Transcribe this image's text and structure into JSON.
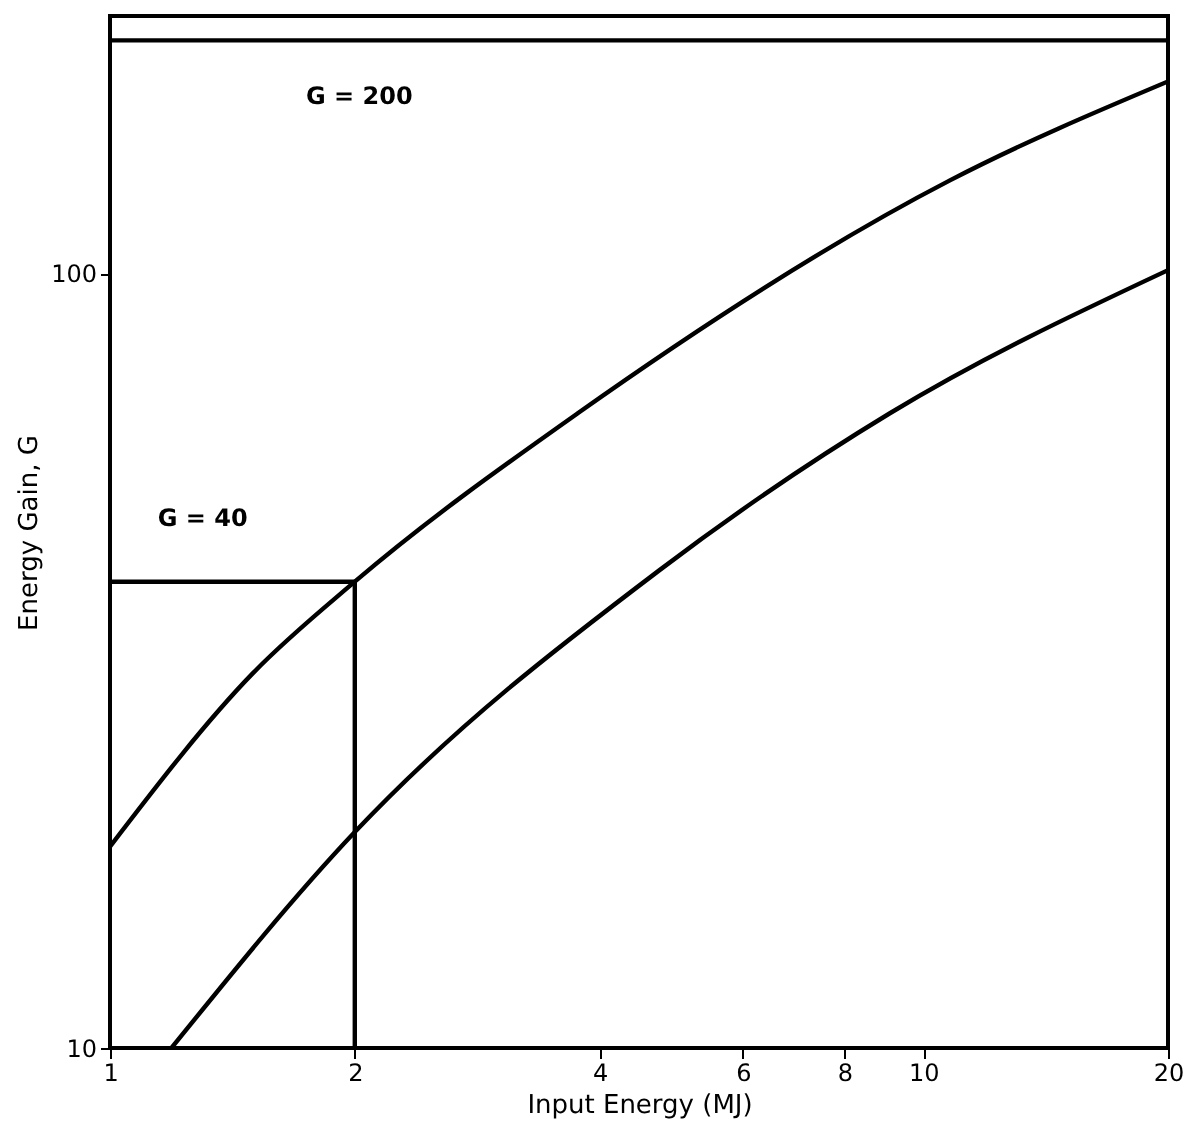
{
  "chart_data": {
    "type": "line",
    "xlabel": "Input Energy (MJ)",
    "ylabel": "Energy Gain, G",
    "log": "xy",
    "xlim": [
      1,
      20
    ],
    "xticks": [
      1,
      2,
      4,
      6,
      8,
      10,
      20
    ],
    "ylim": [
      10,
      215
    ],
    "yticks": [
      10,
      100
    ],
    "grid": false,
    "marker": "none",
    "line_style": "solid",
    "series": [
      {
        "color": "#000000",
        "x": [
          1,
          1.5,
          2,
          3.76,
          10.8,
          20
        ],
        "values": [
          18.2,
          30.5,
          40,
          66,
          132,
          177
        ]
      },
      {
        "color": "#000000",
        "x": [
          1.19,
          2,
          4.74,
          9.1,
          20
        ],
        "values": [
          10,
          19,
          41.4,
          66,
          101
        ]
      },
      {
        "color": "#000000",
        "x": [
          1,
          2
        ],
        "values": [
          40,
          40
        ]
      },
      {
        "color": "#000000",
        "x": [
          2,
          2
        ],
        "values": [
          10,
          40
        ]
      }
    ],
    "ref_lines": [
      {
        "axis": "y",
        "value": 200,
        "label": "G = 200",
        "color": "#000000"
      }
    ],
    "annotations": [
      {
        "text": "G = 40",
        "x": 1.3,
        "y": 40
      }
    ]
  }
}
